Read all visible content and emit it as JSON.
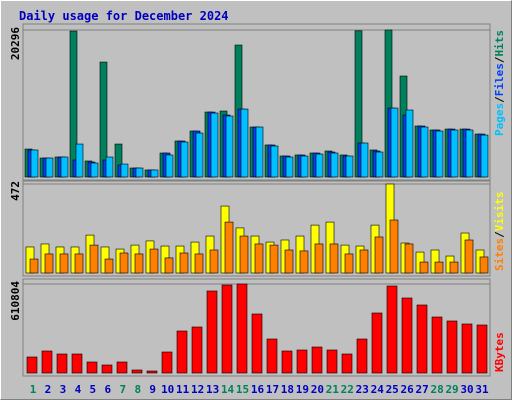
{
  "title": "Daily usage for December 2024",
  "separator": "/",
  "chart_data": [
    {
      "type": "bar",
      "ylim": [
        0,
        20296
      ],
      "yticks": [
        20296
      ],
      "grid": true,
      "series": [
        {
          "name": "Hits",
          "color": "#00805c",
          "values": [
            3860,
            2620,
            2760,
            20150,
            2210,
            15870,
            4550,
            1240,
            970,
            3310,
            4970,
            6350,
            8970,
            9110,
            18220,
            6900,
            4420,
            2900,
            3040,
            3310,
            3590,
            3040,
            20180,
            3730,
            20296,
            13940,
            7040,
            6490,
            6620,
            6620,
            5930
          ]
        },
        {
          "name": "Files",
          "color": "#0040ff",
          "values": [
            3730,
            2620,
            2760,
            2350,
            2070,
            2350,
            1660,
            1240,
            970,
            3310,
            4970,
            6350,
            8970,
            8560,
            9380,
            6900,
            4420,
            2900,
            3040,
            3310,
            3450,
            2900,
            4690,
            3590,
            9520,
            8560,
            7040,
            6490,
            6620,
            6620,
            5930
          ]
        },
        {
          "name": "Pages",
          "color": "#00c0ff",
          "values": [
            3730,
            2620,
            2760,
            4550,
            1930,
            2760,
            1790,
            1240,
            970,
            3040,
            4830,
            6070,
            8830,
            8420,
            9380,
            6900,
            4280,
            2760,
            2900,
            3170,
            3310,
            2900,
            4690,
            3450,
            9520,
            9250,
            6900,
            6350,
            6490,
            6490,
            5790
          ]
        }
      ]
    },
    {
      "type": "bar",
      "ylim": [
        0,
        472
      ],
      "yticks": [
        472
      ],
      "grid": true,
      "series": [
        {
          "name": "Visits",
          "color": "#ffff00",
          "values": [
            138,
            154,
            138,
            138,
            201,
            138,
            127,
            148,
            170,
            143,
            143,
            164,
            196,
            355,
            239,
            196,
            164,
            175,
            196,
            254,
            270,
            148,
            143,
            254,
            472,
            159,
            111,
            122,
            90,
            212,
            122
          ]
        },
        {
          "name": "Sites",
          "color": "#ff8000",
          "values": [
            74,
            101,
            101,
            101,
            148,
            74,
            106,
            101,
            127,
            80,
            106,
            101,
            122,
            270,
            196,
            154,
            148,
            122,
            117,
            154,
            154,
            101,
            122,
            191,
            281,
            154,
            58,
            58,
            58,
            175,
            85
          ]
        }
      ]
    },
    {
      "type": "bar",
      "ylim": [
        0,
        610804
      ],
      "yticks": [
        610804
      ],
      "grid": true,
      "categories": [
        "1",
        "2",
        "3",
        "4",
        "5",
        "6",
        "7",
        "8",
        "9",
        "10",
        "11",
        "12",
        "13",
        "14",
        "15",
        "16",
        "17",
        "18",
        "19",
        "20",
        "21",
        "22",
        "23",
        "24",
        "25",
        "26",
        "27",
        "28",
        "29",
        "30",
        "31"
      ],
      "category_colors": [
        "#00805c",
        "#0000c0",
        "#0000c0",
        "#0000c0",
        "#0000c0",
        "#0000c0",
        "#00805c",
        "#00805c",
        "#0000c0",
        "#0000c0",
        "#0000c0",
        "#0000c0",
        "#0000c0",
        "#00805c",
        "#00805c",
        "#0000c0",
        "#0000c0",
        "#0000c0",
        "#0000c0",
        "#0000c0",
        "#00805c",
        "#00805c",
        "#0000c0",
        "#0000c0",
        "#0000c0",
        "#0000c0",
        "#0000c0",
        "#00805c",
        "#00805c",
        "#0000c0",
        "#0000c0"
      ],
      "series": [
        {
          "name": "KBytes",
          "color": "#ff0000",
          "values": [
            109800,
            151000,
            130400,
            130400,
            75500,
            54900,
            75500,
            20600,
            13700,
            144100,
            288200,
            315700,
            562800,
            603900,
            610804,
            404900,
            233300,
            151000,
            157800,
            178400,
            157800,
            130400,
            233300,
            411800,
            597100,
            514700,
            466700,
            384300,
            356900,
            336300,
            329400
          ]
        }
      ]
    }
  ]
}
